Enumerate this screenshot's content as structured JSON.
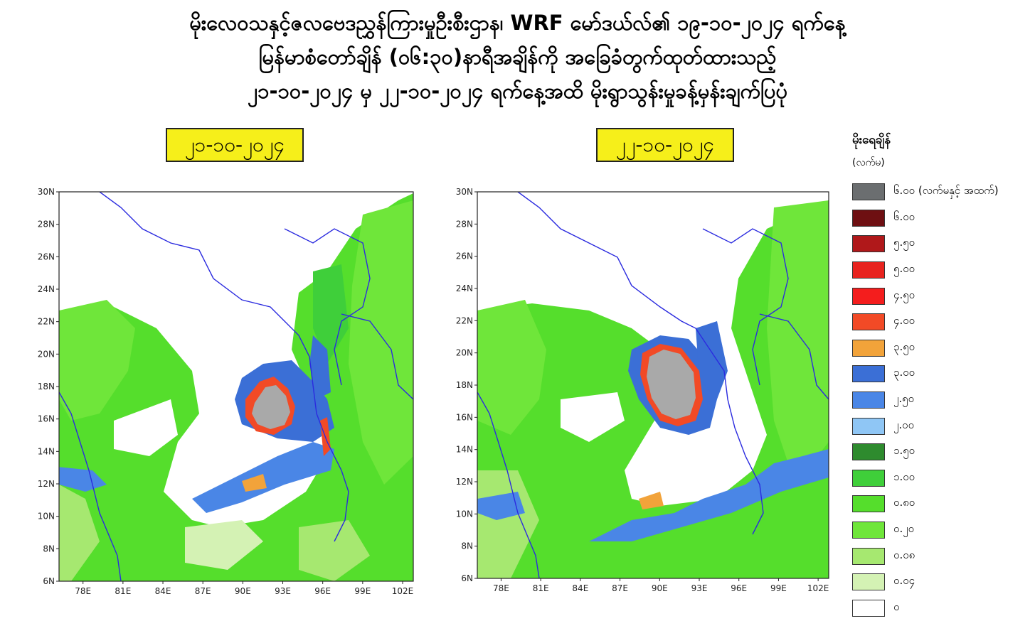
{
  "title": {
    "line1": "မိုးလေဝသနှင့်ဇလဗေဒညွှန်ကြားမှုဦးစီးဌာန၊ WRF မော်ဒယ်လ်၏ ၁၉-၁၀-၂၀၂၄ ရက်နေ့",
    "line2": "မြန်မာစံတော်ချိန် (၀၆:၃၀)နာရီအချိန်ကို အခြေခံတွက်ထုတ်ထားသည့်",
    "line3": "၂၁-၁၀-၂၀၂၄ မှ ၂၂-၁၀-၂၀၂၄ ရက်နေ့အထိ မိုးရွာသွန်းမှုခန့်မှန်းချက်ပြပုံ"
  },
  "maps": [
    {
      "date": "၂၁-၁၀-၂၀၂၄",
      "lat_labels": [
        "30N",
        "28N",
        "26N",
        "24N",
        "22N",
        "20N",
        "18N",
        "16N",
        "14N",
        "12N",
        "10N",
        "8N",
        "6N"
      ],
      "lon_labels": [
        "78E",
        "81E",
        "84E",
        "87E",
        "90E",
        "93E",
        "96E",
        "99E",
        "102E"
      ],
      "rain_centre": {
        "lon": 92.5,
        "lat": 16.8
      }
    },
    {
      "date": "၂၂-၁၀-၂၀၂၄",
      "lat_labels": [
        "30N",
        "28N",
        "26N",
        "24N",
        "22N",
        "20N",
        "18N",
        "16N",
        "14N",
        "12N",
        "10N",
        "8N",
        "6N"
      ],
      "lon_labels": [
        "78E",
        "81E",
        "84E",
        "87E",
        "90E",
        "93E",
        "96E",
        "99E",
        "102E"
      ],
      "rain_centre": {
        "lon": 91.5,
        "lat": 18.4
      }
    }
  ],
  "legend": {
    "title": "မိုးရေချိန်",
    "unit": "(လက်မ)",
    "items": [
      {
        "label": "၆.၀၀ (လက်မနှင့် အထက်)",
        "color": "#6b6e70"
      },
      {
        "label": "၆.၀၀",
        "color": "#6e0f12"
      },
      {
        "label": "၅.၅၀",
        "color": "#b0181a"
      },
      {
        "label": "၅.၀၀",
        "color": "#e8231f"
      },
      {
        "label": "၄.၅၀",
        "color": "#f41d1d"
      },
      {
        "label": "၄.၀၀",
        "color": "#f24a26"
      },
      {
        "label": "၃.၅၀",
        "color": "#f2a33a"
      },
      {
        "label": "၃.၀၀",
        "color": "#3b6fd6"
      },
      {
        "label": "၂.၅၀",
        "color": "#4a86e6"
      },
      {
        "label": "၂.၀၀",
        "color": "#8fc6f5"
      },
      {
        "label": "၁.၅၀",
        "color": "#2e8b2e"
      },
      {
        "label": "၁.၀၀",
        "color": "#3fcf3a"
      },
      {
        "label": "၀.၈၀",
        "color": "#55de2c"
      },
      {
        "label": "၀.၂၀",
        "color": "#6fe63a"
      },
      {
        "label": "၀.၀၈",
        "color": "#a6e870"
      },
      {
        "label": "၀.၀၄",
        "color": "#d4f2b4"
      },
      {
        "label": "၀",
        "color": "#ffffff"
      }
    ]
  }
}
